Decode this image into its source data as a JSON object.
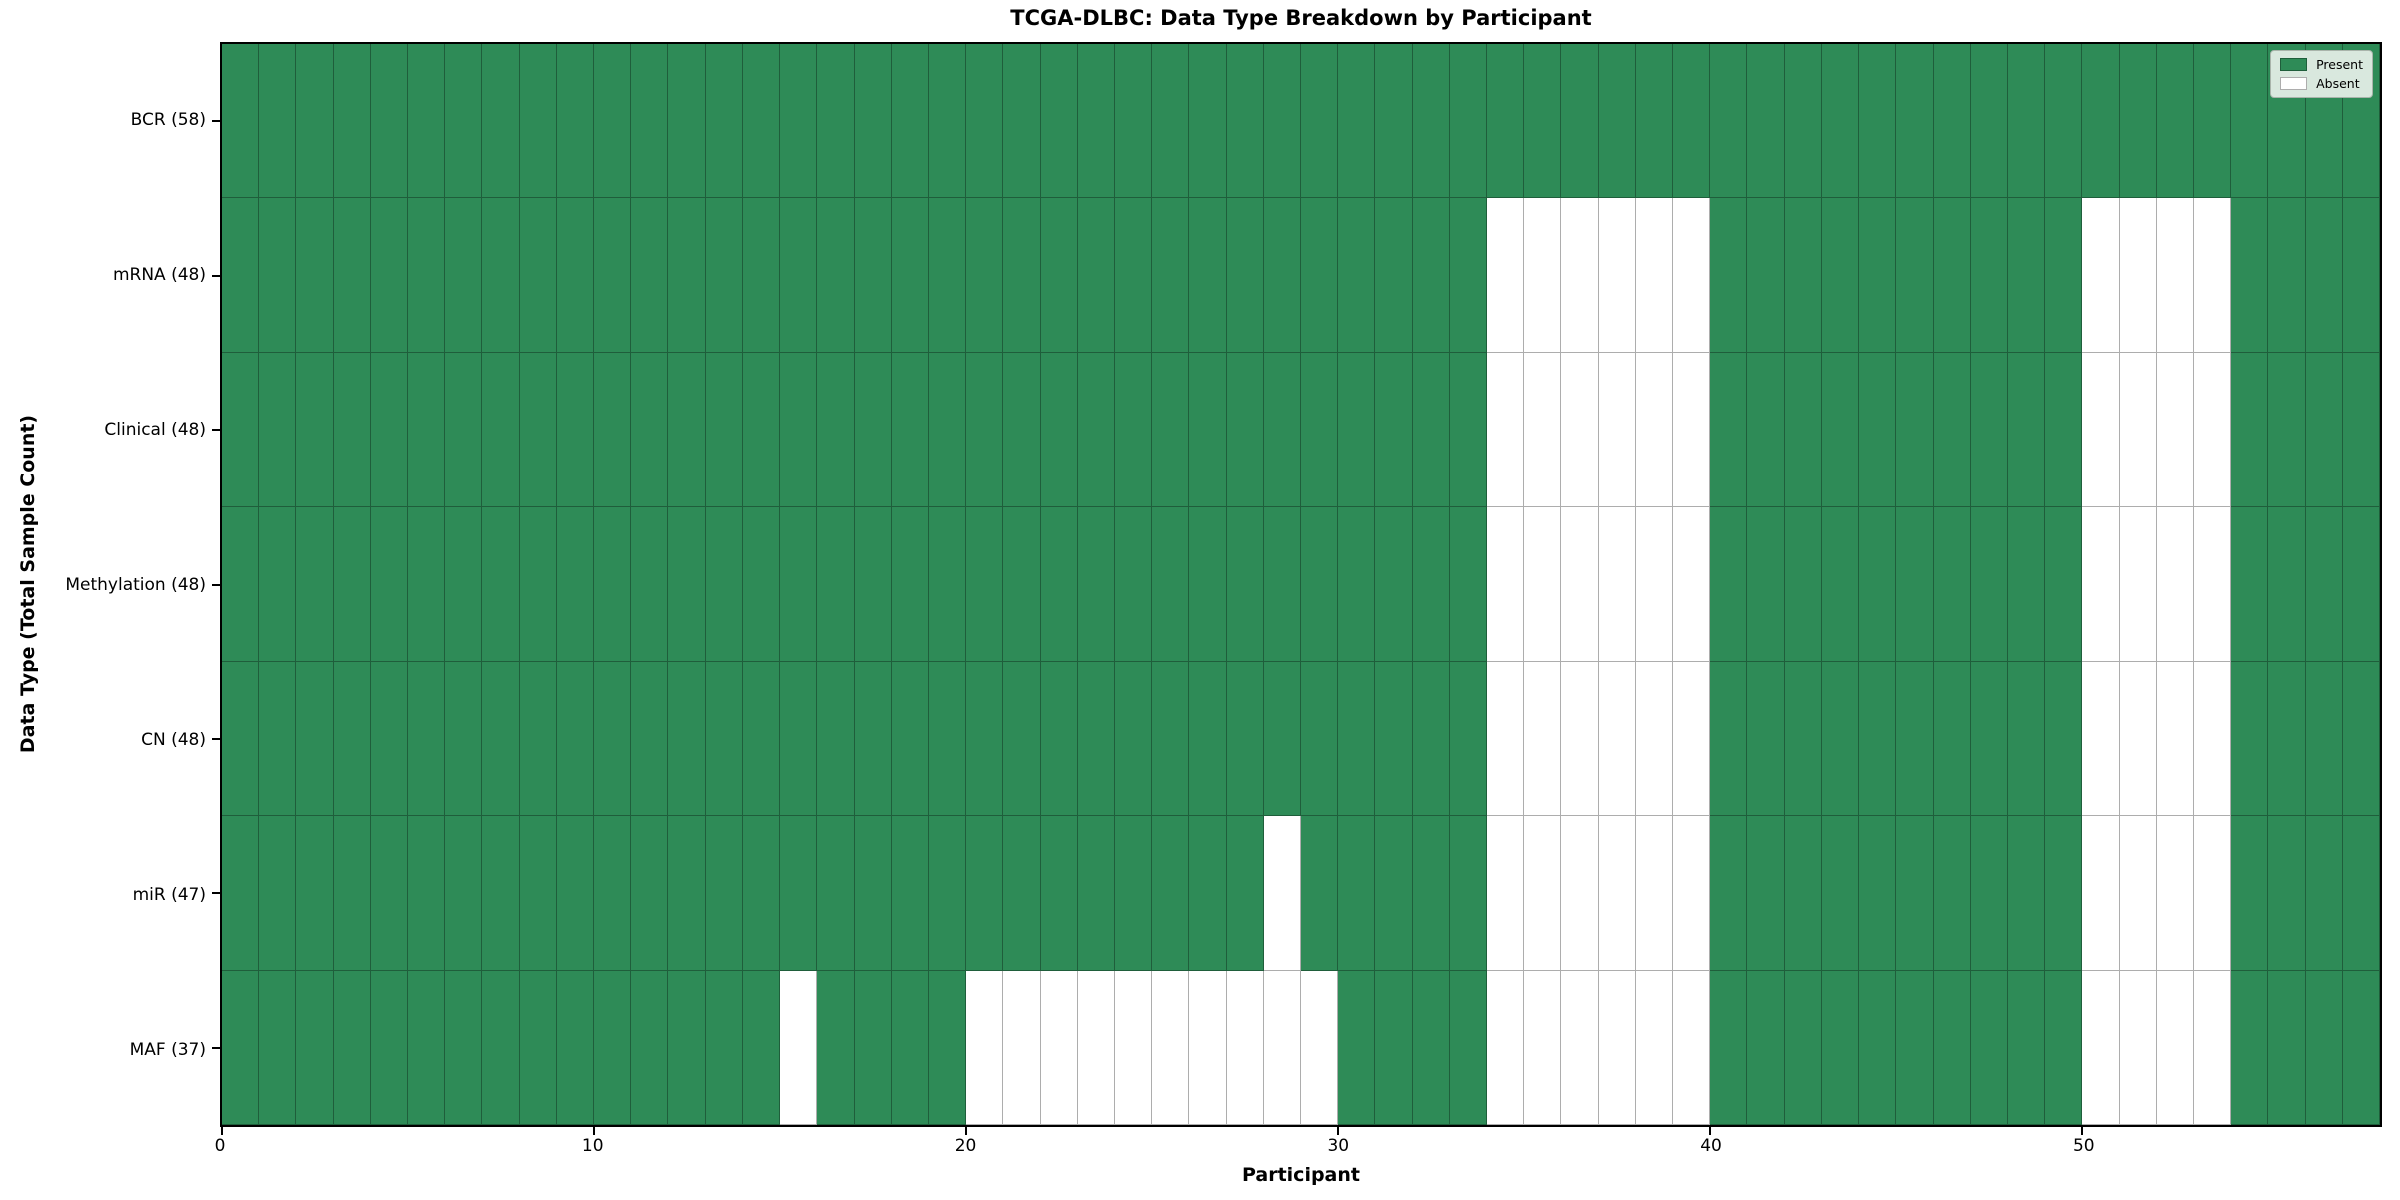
{
  "chart_data": {
    "type": "heatmap",
    "title": "TCGA-DLBC: Data Type Breakdown by Participant",
    "xlabel": "Participant",
    "ylabel": "Data Type (Total Sample Count)",
    "n_participants": 58,
    "x_range": [
      0,
      58
    ],
    "x_ticks": [
      0,
      10,
      20,
      30,
      40,
      50
    ],
    "grid": "cell-borders",
    "legend_position": "upper right",
    "value_encoding": {
      "present": 1,
      "absent": 0
    },
    "rows": [
      {
        "data_type": "BCR",
        "label": "BCR (58)",
        "present_count": 58,
        "absent_participants": []
      },
      {
        "data_type": "mRNA",
        "label": "mRNA (48)",
        "present_count": 48,
        "absent_participants": [
          34,
          35,
          36,
          37,
          38,
          39,
          50,
          51,
          52,
          53
        ]
      },
      {
        "data_type": "Clinical",
        "label": "Clinical (48)",
        "present_count": 48,
        "absent_participants": [
          34,
          35,
          36,
          37,
          38,
          39,
          50,
          51,
          52,
          53
        ]
      },
      {
        "data_type": "Methylation",
        "label": "Methylation (48)",
        "present_count": 48,
        "absent_participants": [
          34,
          35,
          36,
          37,
          38,
          39,
          50,
          51,
          52,
          53
        ]
      },
      {
        "data_type": "CN",
        "label": "CN (48)",
        "present_count": 48,
        "absent_participants": [
          34,
          35,
          36,
          37,
          38,
          39,
          50,
          51,
          52,
          53
        ]
      },
      {
        "data_type": "miR",
        "label": "miR (47)",
        "present_count": 47,
        "absent_participants": [
          28,
          34,
          35,
          36,
          37,
          38,
          39,
          50,
          51,
          52,
          53
        ]
      },
      {
        "data_type": "MAF",
        "label": "MAF (37)",
        "present_count": 37,
        "absent_participants": [
          15,
          20,
          21,
          22,
          23,
          24,
          25,
          26,
          27,
          28,
          29,
          34,
          35,
          36,
          37,
          38,
          39,
          50,
          51,
          52,
          53
        ]
      }
    ],
    "legend_items": [
      {
        "label": "Present",
        "color": "#2e8b57"
      },
      {
        "label": "Absent",
        "color": "#ffffff"
      }
    ],
    "colors": {
      "present": "#2e8b57",
      "absent": "#ffffff",
      "cell_edge": "rgba(0,0,0,0.32)",
      "spine": "#000000"
    }
  }
}
